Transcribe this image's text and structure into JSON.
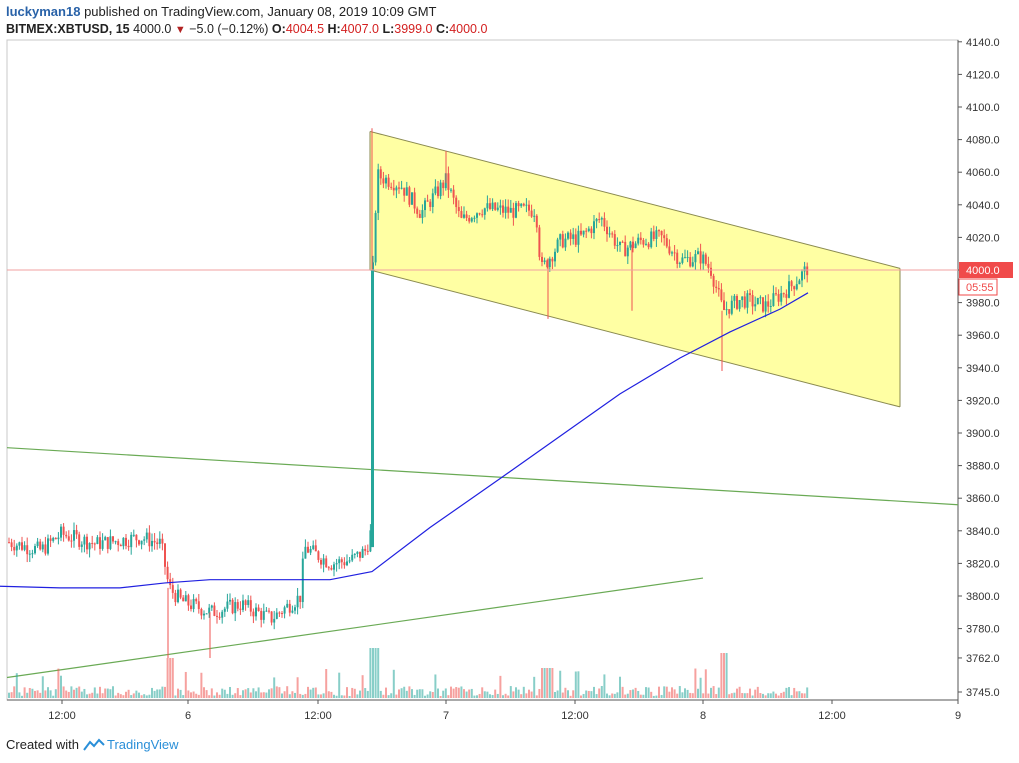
{
  "header": {
    "author": "luckyman18",
    "published": "published on TradingView.com, January 08, 2019 10:09 GMT",
    "symbol": "BITMEX:XBTUSD, 15",
    "last": "4000.0",
    "change": "−5.0 (−0.12%)",
    "o_label": "O:",
    "o_value": "4004.5",
    "h_label": "H:",
    "h_value": "4007.0",
    "l_label": "L:",
    "l_value": "3999.0",
    "c_label": "C:",
    "c_value": "4000.0"
  },
  "price_tag": {
    "value": "4000.0",
    "countdown": "05:55"
  },
  "footer": {
    "created_with": "Created with",
    "brand": "TradingView"
  },
  "colors": {
    "up": "#26a69a",
    "down": "#ef5350",
    "ma": "#2020e0",
    "channel_fill": "#ffff80",
    "channel_line": "#8a8a50",
    "trend": "#6aaa55",
    "price_line": "#f0a0a0",
    "tag": "#f04a4a"
  },
  "chart_data": {
    "type": "candlestick",
    "y_ticks": [
      "4140.0",
      "4120.0",
      "4100.0",
      "4080.0",
      "4060.0",
      "4040.0",
      "4020.0",
      "4000.0",
      "3980.0",
      "3960.0",
      "3940.0",
      "3920.0",
      "3900.0",
      "3880.0",
      "3860.0",
      "3840.0",
      "3820.0",
      "3800.0",
      "3780.0",
      "3762.0",
      "3745.0"
    ],
    "x_ticks": [
      "12:00",
      "6",
      "12:00",
      "7",
      "12:00",
      "8",
      "12:00",
      "9"
    ],
    "last_price": 4000.0,
    "ma_points": [
      [
        0,
        3806
      ],
      [
        60,
        3805
      ],
      [
        120,
        3805
      ],
      [
        165,
        3808
      ],
      [
        210,
        3810
      ],
      [
        270,
        3810
      ],
      [
        330,
        3810
      ],
      [
        372,
        3815
      ],
      [
        430,
        3842
      ],
      [
        500,
        3872
      ],
      [
        560,
        3898
      ],
      [
        620,
        3924
      ],
      [
        680,
        3946
      ],
      [
        730,
        3962
      ],
      [
        780,
        3976
      ],
      [
        808,
        3986
      ]
    ],
    "channel": {
      "upper": [
        [
          370,
          4085
        ],
        [
          900,
          4001
        ]
      ],
      "lower": [
        [
          370,
          4000
        ],
        [
          900,
          3916
        ]
      ]
    },
    "trendlines": [
      {
        "from": [
          7,
          3891
        ],
        "to": [
          958,
          3856
        ]
      },
      {
        "from": [
          7,
          3750
        ],
        "to": [
          703,
          3811
        ]
      }
    ]
  }
}
